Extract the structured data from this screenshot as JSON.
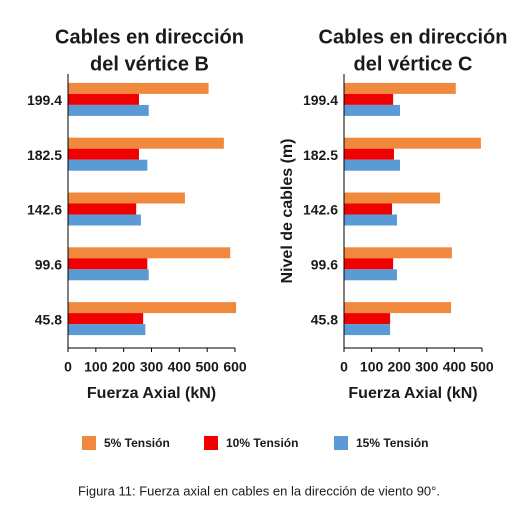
{
  "chart_data": [
    {
      "type": "barh",
      "title": [
        "Cables en dirección",
        "del vértice B"
      ],
      "categories": [
        "199.4",
        "182.5",
        "142.6",
        "99.6",
        "45.8"
      ],
      "series": [
        {
          "name": "5% Tensión",
          "color": "#f0883e",
          "values": [
            505,
            560,
            420,
            583,
            604
          ]
        },
        {
          "name": "10% Tensión",
          "color": "#f00000",
          "values": [
            255,
            255,
            245,
            285,
            270
          ]
        },
        {
          "name": "15% Tensión",
          "color": "#5b9bd5",
          "values": [
            290,
            285,
            262,
            290,
            278
          ]
        }
      ],
      "xlim": [
        0,
        600
      ],
      "xticks": [
        0,
        100,
        200,
        300,
        400,
        500,
        600
      ],
      "xlabel": "Fuerza Axial (kN)"
    },
    {
      "type": "barh",
      "title": [
        "Cables en dirección",
        "del vértice C"
      ],
      "categories": [
        "199.4",
        "182.5",
        "142.6",
        "99.6",
        "45.8"
      ],
      "series": [
        {
          "color": "#f0883e",
          "values": [
            405,
            496,
            348,
            391,
            388
          ]
        },
        {
          "color": "#f00000",
          "values": [
            178,
            181,
            174,
            178,
            167
          ]
        },
        {
          "color": "#5b9bd5",
          "values": [
            203,
            203,
            192,
            192,
            167
          ]
        }
      ],
      "xlim": [
        0,
        500
      ],
      "xticks": [
        0,
        100,
        200,
        300,
        400,
        500
      ],
      "xlabel": "Fuerza Axial (kN)",
      "ylabel": "Nivel de cables (m)"
    }
  ],
  "caption": "Figura 11: Fuerza axial en cables en la dirección de viento 90°."
}
